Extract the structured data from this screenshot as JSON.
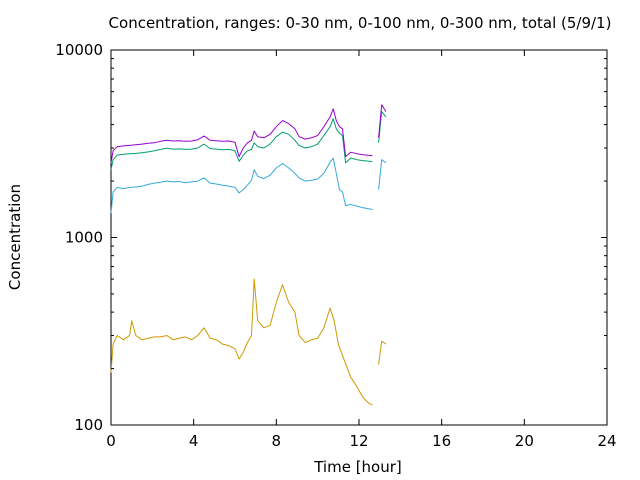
{
  "chart_data": {
    "type": "line",
    "title": "Concentration, ranges: 0-30 nm, 0-100 nm, 0-300 nm, total (5/9/1)",
    "xlabel": "Time [hour]",
    "ylabel": "Concentration",
    "xlim": [
      0,
      24
    ],
    "ylim": [
      100,
      10000
    ],
    "yscale": "log",
    "grid": false,
    "legend": "none",
    "x_ticks": [
      0,
      4,
      8,
      12,
      16,
      20,
      24
    ],
    "y_ticks": [
      100,
      1000,
      10000
    ],
    "x_tick_labels": [
      "0",
      "4",
      "8",
      "12",
      "16",
      "20",
      "24"
    ],
    "y_tick_labels": [
      "100",
      "1000",
      "10000"
    ],
    "series": [
      {
        "color": "#cc9900",
        "segments": [
          [
            [
              0.0,
              190
            ],
            [
              0.1,
              270
            ],
            [
              0.3,
              300
            ],
            [
              0.6,
              285
            ],
            [
              0.9,
              300
            ],
            [
              1.0,
              360
            ],
            [
              1.2,
              300
            ],
            [
              1.5,
              285
            ],
            [
              1.8,
              290
            ],
            [
              2.1,
              295
            ],
            [
              2.4,
              295
            ],
            [
              2.7,
              300
            ],
            [
              3.0,
              285
            ],
            [
              3.3,
              290
            ],
            [
              3.6,
              295
            ],
            [
              3.9,
              285
            ],
            [
              4.2,
              300
            ],
            [
              4.5,
              330
            ],
            [
              4.8,
              290
            ],
            [
              5.1,
              285
            ],
            [
              5.4,
              270
            ],
            [
              5.7,
              265
            ],
            [
              6.0,
              255
            ],
            [
              6.2,
              225
            ],
            [
              6.4,
              245
            ],
            [
              6.6,
              275
            ],
            [
              6.8,
              300
            ],
            [
              6.93,
              600
            ],
            [
              7.1,
              360
            ],
            [
              7.4,
              330
            ],
            [
              7.7,
              340
            ],
            [
              8.0,
              450
            ],
            [
              8.3,
              560
            ],
            [
              8.6,
              450
            ],
            [
              8.9,
              400
            ],
            [
              9.1,
              300
            ],
            [
              9.4,
              275
            ],
            [
              9.7,
              285
            ],
            [
              10.0,
              290
            ],
            [
              10.3,
              330
            ],
            [
              10.6,
              420
            ],
            [
              10.8,
              360
            ],
            [
              11.0,
              270
            ],
            [
              11.3,
              220
            ],
            [
              11.6,
              180
            ],
            [
              11.9,
              160
            ],
            [
              12.2,
              140
            ],
            [
              12.5,
              130
            ],
            [
              12.65,
              128
            ]
          ],
          [
            [
              12.95,
              210
            ],
            [
              13.1,
              280
            ],
            [
              13.3,
              270
            ]
          ]
        ]
      },
      {
        "color": "#33aadd",
        "segments": [
          [
            [
              0.0,
              1350
            ],
            [
              0.1,
              1750
            ],
            [
              0.3,
              1850
            ],
            [
              0.6,
              1820
            ],
            [
              0.9,
              1850
            ],
            [
              1.2,
              1860
            ],
            [
              1.5,
              1880
            ],
            [
              1.8,
              1920
            ],
            [
              2.1,
              1950
            ],
            [
              2.4,
              1970
            ],
            [
              2.7,
              2000
            ],
            [
              3.0,
              1980
            ],
            [
              3.3,
              1990
            ],
            [
              3.6,
              1960
            ],
            [
              3.9,
              1980
            ],
            [
              4.2,
              2000
            ],
            [
              4.5,
              2080
            ],
            [
              4.8,
              1950
            ],
            [
              5.1,
              1930
            ],
            [
              5.4,
              1900
            ],
            [
              5.7,
              1880
            ],
            [
              6.0,
              1850
            ],
            [
              6.2,
              1730
            ],
            [
              6.4,
              1800
            ],
            [
              6.6,
              1900
            ],
            [
              6.8,
              2020
            ],
            [
              6.93,
              2300
            ],
            [
              7.1,
              2120
            ],
            [
              7.4,
              2060
            ],
            [
              7.7,
              2150
            ],
            [
              8.0,
              2350
            ],
            [
              8.3,
              2480
            ],
            [
              8.6,
              2350
            ],
            [
              8.9,
              2200
            ],
            [
              9.1,
              2080
            ],
            [
              9.4,
              2000
            ],
            [
              9.7,
              2020
            ],
            [
              10.0,
              2050
            ],
            [
              10.3,
              2200
            ],
            [
              10.6,
              2520
            ],
            [
              10.75,
              2650
            ],
            [
              10.9,
              2200
            ],
            [
              11.05,
              1800
            ],
            [
              11.2,
              1750
            ],
            [
              11.35,
              1480
            ],
            [
              11.6,
              1500
            ],
            [
              11.9,
              1470
            ],
            [
              12.2,
              1440
            ],
            [
              12.5,
              1420
            ],
            [
              12.65,
              1410
            ]
          ],
          [
            [
              12.95,
              1800
            ],
            [
              13.1,
              2600
            ],
            [
              13.3,
              2500
            ]
          ]
        ]
      },
      {
        "color": "#009e73",
        "segments": [
          [
            [
              0.0,
              2300
            ],
            [
              0.1,
              2600
            ],
            [
              0.3,
              2750
            ],
            [
              0.6,
              2780
            ],
            [
              0.9,
              2800
            ],
            [
              1.2,
              2810
            ],
            [
              1.5,
              2830
            ],
            [
              1.8,
              2860
            ],
            [
              2.1,
              2900
            ],
            [
              2.4,
              2950
            ],
            [
              2.7,
              2990
            ],
            [
              3.0,
              2960
            ],
            [
              3.3,
              2970
            ],
            [
              3.6,
              2950
            ],
            [
              3.9,
              2960
            ],
            [
              4.2,
              3000
            ],
            [
              4.5,
              3150
            ],
            [
              4.8,
              2980
            ],
            [
              5.1,
              2960
            ],
            [
              5.4,
              2940
            ],
            [
              5.7,
              2950
            ],
            [
              6.0,
              2900
            ],
            [
              6.2,
              2550
            ],
            [
              6.4,
              2750
            ],
            [
              6.6,
              2900
            ],
            [
              6.8,
              2950
            ],
            [
              6.93,
              3200
            ],
            [
              7.1,
              3050
            ],
            [
              7.4,
              3000
            ],
            [
              7.7,
              3150
            ],
            [
              8.0,
              3450
            ],
            [
              8.3,
              3650
            ],
            [
              8.6,
              3550
            ],
            [
              8.9,
              3300
            ],
            [
              9.1,
              3100
            ],
            [
              9.4,
              3000
            ],
            [
              9.7,
              3050
            ],
            [
              10.0,
              3150
            ],
            [
              10.3,
              3500
            ],
            [
              10.6,
              3900
            ],
            [
              10.75,
              4300
            ],
            [
              10.9,
              3800
            ],
            [
              11.05,
              3600
            ],
            [
              11.2,
              3500
            ],
            [
              11.35,
              2500
            ],
            [
              11.6,
              2650
            ],
            [
              11.9,
              2600
            ],
            [
              12.2,
              2570
            ],
            [
              12.5,
              2550
            ],
            [
              12.65,
              2540
            ]
          ],
          [
            [
              12.95,
              3200
            ],
            [
              13.1,
              4700
            ],
            [
              13.3,
              4400
            ]
          ]
        ]
      },
      {
        "color": "#9400d3",
        "segments": [
          [
            [
              0.0,
              2500
            ],
            [
              0.1,
              2900
            ],
            [
              0.3,
              3050
            ],
            [
              0.6,
              3080
            ],
            [
              0.9,
              3100
            ],
            [
              1.2,
              3120
            ],
            [
              1.5,
              3150
            ],
            [
              1.8,
              3180
            ],
            [
              2.1,
              3200
            ],
            [
              2.4,
              3260
            ],
            [
              2.7,
              3300
            ],
            [
              3.0,
              3270
            ],
            [
              3.3,
              3280
            ],
            [
              3.6,
              3260
            ],
            [
              3.9,
              3270
            ],
            [
              4.2,
              3320
            ],
            [
              4.5,
              3480
            ],
            [
              4.8,
              3300
            ],
            [
              5.1,
              3280
            ],
            [
              5.4,
              3260
            ],
            [
              5.7,
              3270
            ],
            [
              6.0,
              3220
            ],
            [
              6.2,
              2700
            ],
            [
              6.4,
              3000
            ],
            [
              6.6,
              3200
            ],
            [
              6.8,
              3300
            ],
            [
              6.93,
              3700
            ],
            [
              7.1,
              3450
            ],
            [
              7.4,
              3400
            ],
            [
              7.7,
              3550
            ],
            [
              8.0,
              3900
            ],
            [
              8.3,
              4200
            ],
            [
              8.6,
              4050
            ],
            [
              8.9,
              3800
            ],
            [
              9.1,
              3450
            ],
            [
              9.4,
              3350
            ],
            [
              9.7,
              3400
            ],
            [
              10.0,
              3500
            ],
            [
              10.3,
              3900
            ],
            [
              10.6,
              4400
            ],
            [
              10.75,
              4850
            ],
            [
              10.9,
              4200
            ],
            [
              11.05,
              3900
            ],
            [
              11.2,
              3800
            ],
            [
              11.35,
              2700
            ],
            [
              11.6,
              2850
            ],
            [
              11.9,
              2800
            ],
            [
              12.2,
              2760
            ],
            [
              12.5,
              2740
            ],
            [
              12.65,
              2730
            ]
          ],
          [
            [
              12.95,
              3400
            ],
            [
              13.1,
              5100
            ],
            [
              13.3,
              4700
            ]
          ]
        ]
      }
    ]
  }
}
